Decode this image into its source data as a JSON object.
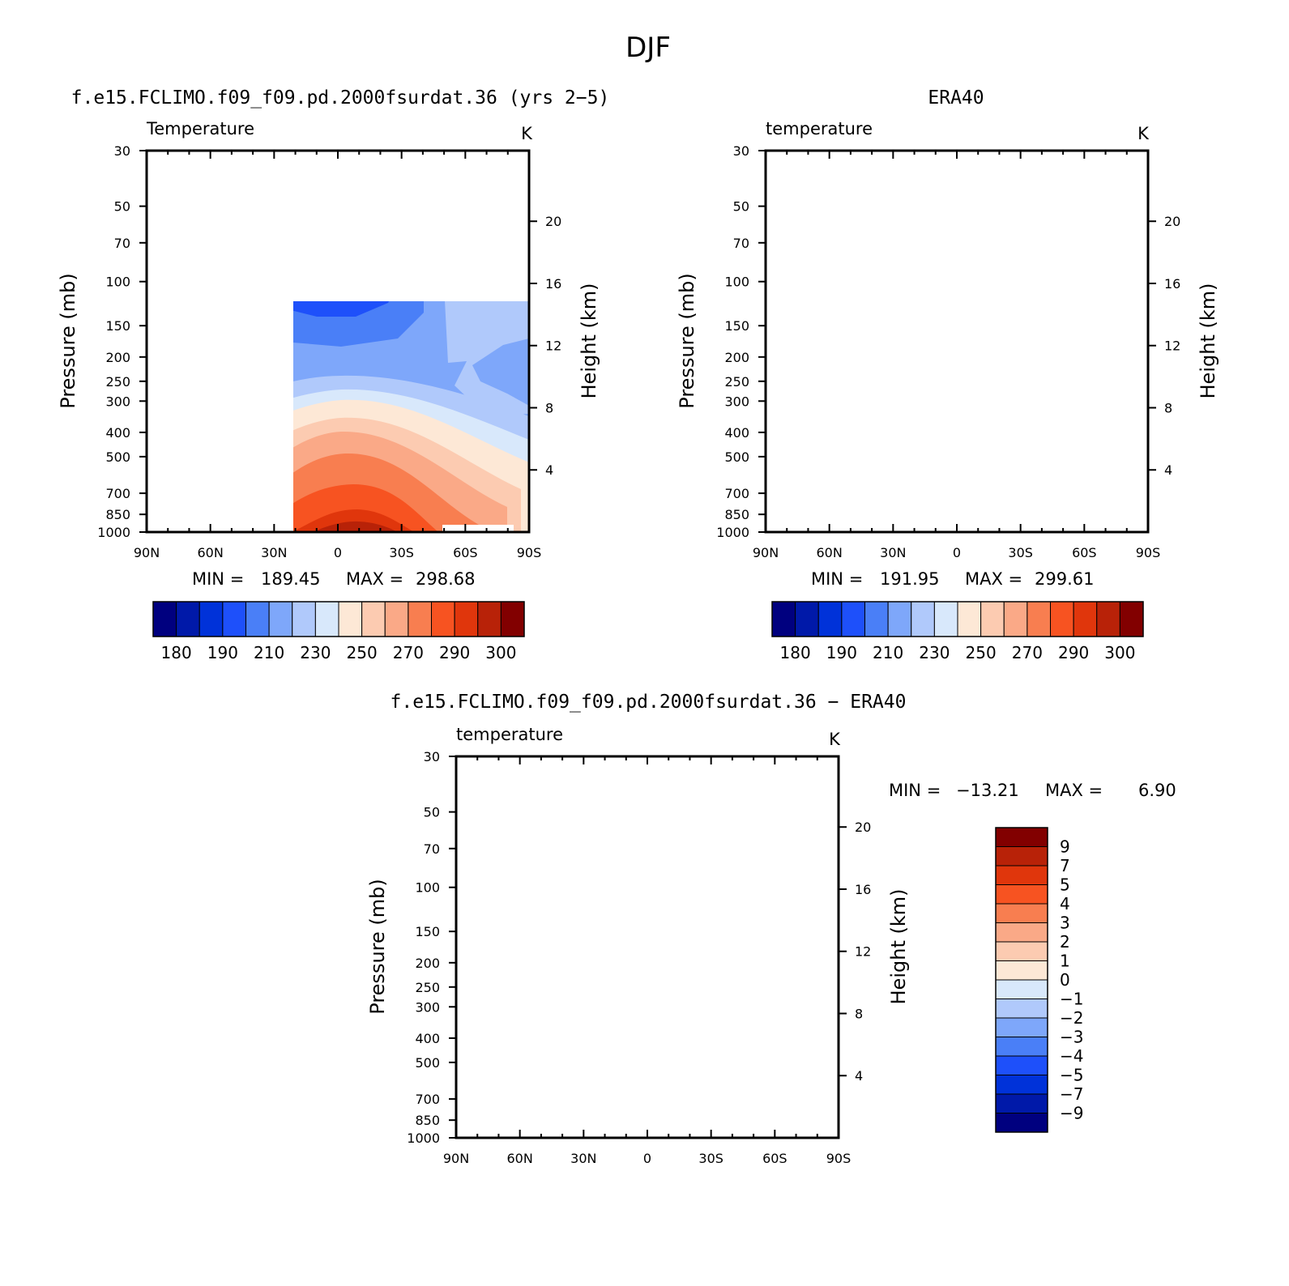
{
  "figure": {
    "title": "DJF",
    "diff_title": "f.e15.FCLIMO.f09_f09.pd.2000fsurdat.36 − ERA40"
  },
  "chart_data": [
    {
      "type": "heatmap",
      "panel_title": "f.e15.FCLIMO.f09_f09.pd.2000fsurdat.36 (yrs 2−5)",
      "variable": "Temperature",
      "units": "K",
      "xlabel": "",
      "ylabel": "Pressure (mb)",
      "ylabel_right": "Height (km)",
      "x_ticks": [
        "90N",
        "60N",
        "30N",
        "0",
        "30S",
        "60S",
        "90S"
      ],
      "y_ticks": [
        "30",
        "50",
        "70",
        "100",
        "150",
        "200",
        "250",
        "300",
        "400",
        "500",
        "700",
        "850",
        "1000"
      ],
      "height_ticks": [
        "20",
        "16",
        "12",
        "8",
        "4"
      ],
      "ylim": [
        1000,
        30
      ],
      "y_scale": "log",
      "min": "189.45",
      "max": "298.68",
      "min_label": "MIN =",
      "max_label": "MAX =",
      "colorbar": {
        "orientation": "horizontal",
        "labels": [
          "180",
          "190",
          "210",
          "230",
          "250",
          "270",
          "290",
          "300"
        ],
        "colors": [
          "#00007f",
          "#0019a9",
          "#0032d9",
          "#1e50fa",
          "#4a7ff7",
          "#7ea7fa",
          "#b0c9fb",
          "#d8e8fb",
          "#fde8d6",
          "#fccbb1",
          "#faa987",
          "#f87e50",
          "#f75321",
          "#e0360c",
          "#b82208",
          "#820000"
        ]
      }
    },
    {
      "type": "heatmap",
      "panel_title": "ERA40",
      "variable": "temperature",
      "units": "K",
      "xlabel": "",
      "ylabel": "Pressure (mb)",
      "ylabel_right": "Height (km)",
      "x_ticks": [
        "90N",
        "60N",
        "30N",
        "0",
        "30S",
        "60S",
        "90S"
      ],
      "y_ticks": [
        "30",
        "50",
        "70",
        "100",
        "150",
        "200",
        "250",
        "300",
        "400",
        "500",
        "700",
        "850",
        "1000"
      ],
      "height_ticks": [
        "20",
        "16",
        "12",
        "8",
        "4"
      ],
      "ylim": [
        1000,
        30
      ],
      "y_scale": "log",
      "min": "191.95",
      "max": "299.61",
      "min_label": "MIN =",
      "max_label": "MAX =",
      "colorbar": {
        "orientation": "horizontal",
        "labels": [
          "180",
          "190",
          "210",
          "230",
          "250",
          "270",
          "290",
          "300"
        ],
        "colors": [
          "#00007f",
          "#0019a9",
          "#0032d9",
          "#1e50fa",
          "#4a7ff7",
          "#7ea7fa",
          "#b0c9fb",
          "#d8e8fb",
          "#fde8d6",
          "#fccbb1",
          "#faa987",
          "#f87e50",
          "#f75321",
          "#e0360c",
          "#b82208",
          "#820000"
        ]
      }
    },
    {
      "type": "heatmap",
      "variable": "temperature",
      "units": "K",
      "xlabel": "",
      "ylabel": "Pressure (mb)",
      "ylabel_right": "Height (km)",
      "x_ticks": [
        "90N",
        "60N",
        "30N",
        "0",
        "30S",
        "60S",
        "90S"
      ],
      "y_ticks": [
        "30",
        "50",
        "70",
        "100",
        "150",
        "200",
        "250",
        "300",
        "400",
        "500",
        "700",
        "850",
        "1000"
      ],
      "height_ticks": [
        "20",
        "16",
        "12",
        "8",
        "4"
      ],
      "ylim": [
        1000,
        30
      ],
      "y_scale": "log",
      "min": "−13.21",
      "max": "6.90",
      "min_label": "MIN =",
      "max_label": "MAX =",
      "colorbar": {
        "orientation": "vertical",
        "labels": [
          "9",
          "7",
          "5",
          "4",
          "3",
          "2",
          "1",
          "0",
          "−1",
          "−2",
          "−3",
          "−4",
          "−5",
          "−7",
          "−9"
        ],
        "colors": [
          "#820000",
          "#b82208",
          "#e0360c",
          "#f75321",
          "#f87e50",
          "#faa987",
          "#fccbb1",
          "#fde8d6",
          "#d8e8fb",
          "#b0c9fb",
          "#7ea7fa",
          "#4a7ff7",
          "#1e50fa",
          "#0032d9",
          "#0019a9",
          "#00007f"
        ]
      }
    }
  ]
}
